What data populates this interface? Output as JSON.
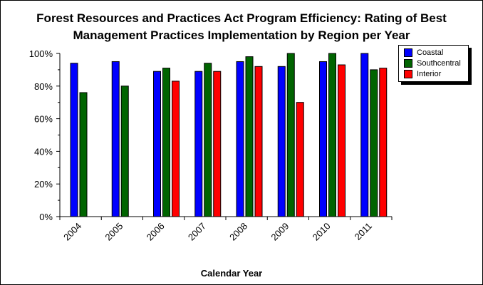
{
  "chart_data": {
    "type": "bar",
    "title": [
      "Forest Resources and Practices Act Program Efficiency:  Rating of Best",
      "Management Practices Implementation by Region per Year"
    ],
    "xlabel": "Calendar Year",
    "ylabel": "",
    "categories": [
      "2004",
      "2005",
      "2006",
      "2007",
      "2008",
      "2009",
      "2010",
      "2011"
    ],
    "ylim": [
      0,
      100
    ],
    "yticks": [
      "0%",
      "20%",
      "40%",
      "60%",
      "80%",
      "100%"
    ],
    "grid": false,
    "legend_position": "top-right",
    "series": [
      {
        "name": "Coastal",
        "color": "#0000ff",
        "values": [
          94,
          95,
          89,
          89,
          95,
          92,
          95,
          100
        ]
      },
      {
        "name": "Southcentral",
        "color": "#006400",
        "values": [
          76,
          80,
          91,
          94,
          98,
          100,
          100,
          90
        ]
      },
      {
        "name": "Interior",
        "color": "#ff0000",
        "values": [
          null,
          null,
          83,
          89,
          92,
          70,
          93,
          91
        ]
      }
    ]
  }
}
